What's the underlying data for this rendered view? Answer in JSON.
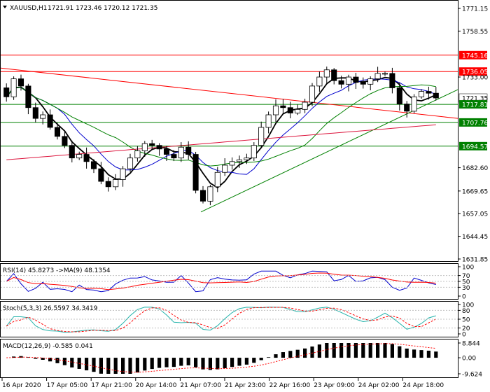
{
  "header": {
    "symbol_timeframe": "XAUUSD,H1",
    "ohlc": "1721.91 1723.46 1720.12 1721.35"
  },
  "price_axis": {
    "ticks": [
      "1771.15",
      "1758.55",
      "1745.16",
      "1736.05",
      "1733.00",
      "1721.35",
      "1717.81",
      "1707.76",
      "1694.57",
      "1682.60",
      "1669.65",
      "1657.05",
      "1644.45",
      "1631.85"
    ]
  },
  "time_axis": {
    "labels": [
      "16 Apr 2020",
      "17 Apr 05:00",
      "17 Apr 21:00",
      "20 Apr 14:00",
      "21 Apr 07:00",
      "21 Apr 23:00",
      "22 Apr 16:00",
      "23 Apr 09:00",
      "24 Apr 02:00",
      "24 Apr 18:00"
    ]
  },
  "levels": [
    {
      "label": "1745.16",
      "value": 1745.16,
      "color": "#ff0000"
    },
    {
      "label": "1736.05",
      "value": 1736.05,
      "color": "#ff0000"
    },
    {
      "label": "1717.81",
      "value": 1717.81,
      "color": "#008000"
    },
    {
      "label": "1707.76",
      "value": 1707.76,
      "color": "#008000"
    },
    {
      "label": "1694.57",
      "value": 1694.57,
      "color": "#008000"
    }
  ],
  "current_price": {
    "label": "1721.35",
    "value": 1721.35
  },
  "rsi": {
    "label": "RSI(14) 45.8273  ->MA(9) 48.1354",
    "ticks": [
      "100",
      "70",
      "50",
      "30",
      "0"
    ]
  },
  "stoch": {
    "label": "Stoch(5,3,3) 26.5597 34.3419",
    "ticks": [
      "100",
      "80",
      "50",
      "20",
      "0"
    ]
  },
  "macd": {
    "label": "MACD(12,26,9) -0.585 0.041",
    "ticks": [
      "8.844",
      "0.00",
      "-9.624"
    ]
  },
  "colors": {
    "bull": "#008000",
    "bear": "#ff0000",
    "candle_line": "#000000",
    "ma_fast": "#000000",
    "ma_mid": "#0000cd",
    "ma_slow": "#008000",
    "ma_long": "#dc143c",
    "resistance": "#ff0000",
    "support": "#008000"
  },
  "chart_data": {
    "type": "candlestick",
    "symbol": "XAUUSD",
    "timeframe": "H1",
    "ylim": [
      1631.85,
      1777
    ],
    "candles_close_approx": [
      1722,
      1732,
      1728,
      1716,
      1710,
      1712,
      1705,
      1700,
      1695,
      1688,
      1690,
      1686,
      1682,
      1675,
      1672,
      1676,
      1682,
      1688,
      1692,
      1696,
      1695,
      1693,
      1690,
      1688,
      1694,
      1690,
      1670,
      1664,
      1672,
      1680,
      1684,
      1686,
      1687,
      1688,
      1695,
      1705,
      1712,
      1717,
      1716,
      1713,
      1715,
      1719,
      1728,
      1733,
      1737,
      1731,
      1729,
      1733,
      1730,
      1729,
      1732,
      1735,
      1735,
      1727,
      1718,
      1714,
      1722,
      1725,
      1724,
      1721.35
    ],
    "trendlines": [
      {
        "name": "descending resistance",
        "from": [
          "16 Apr 2020",
          1738
        ],
        "to": [
          "24 Apr 18:00",
          1711
        ]
      },
      {
        "name": "ascending support",
        "from": [
          "21 Apr 07:00",
          1658
        ],
        "to": [
          "24 Apr 18:00",
          1726
        ]
      }
    ],
    "indicators": {
      "rsi": {
        "value": 45.8273,
        "ma": 48.1354,
        "levels": [
          70,
          50,
          30
        ]
      },
      "stoch": {
        "k": 26.5597,
        "d": 34.3419,
        "levels": [
          80,
          50,
          20
        ]
      },
      "macd": {
        "value": -0.585,
        "signal": 0.041,
        "range": [
          -9.624,
          8.844
        ]
      }
    }
  }
}
